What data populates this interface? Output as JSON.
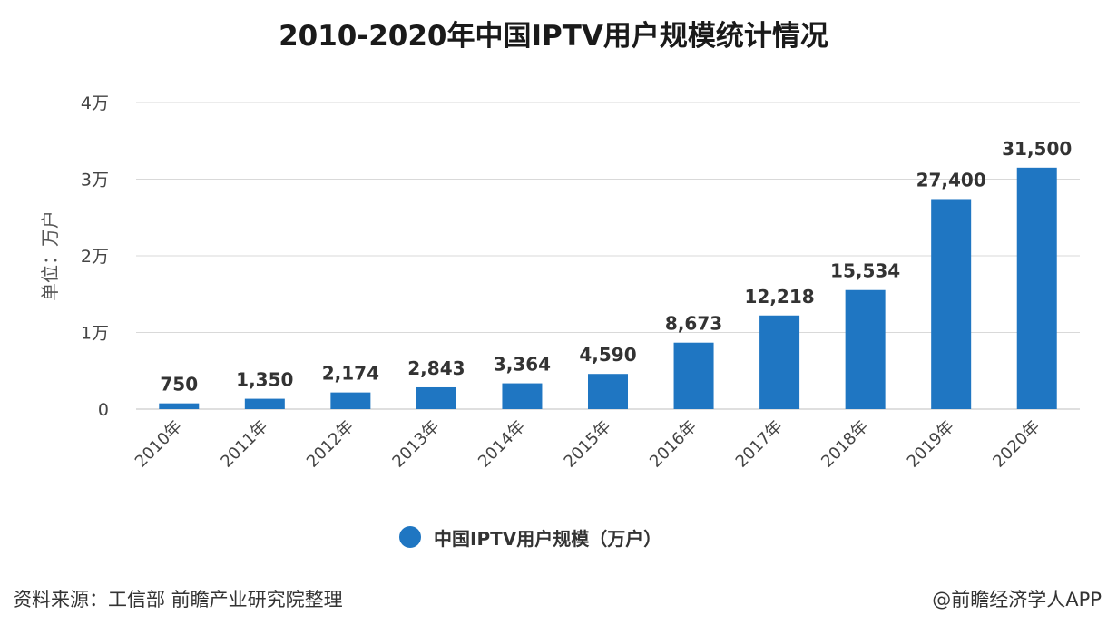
{
  "chart_data": {
    "type": "bar",
    "title": "2010-2020年中国IPTV用户规模统计情况",
    "ylabel": "单位：万户",
    "xlabel": "",
    "categories": [
      "2010年",
      "2011年",
      "2012年",
      "2013年",
      "2014年",
      "2015年",
      "2016年",
      "2017年",
      "2018年",
      "2019年",
      "2020年"
    ],
    "series": [
      {
        "name": "中国IPTV用户规模（万户）",
        "values": [
          750,
          1350,
          2174,
          2843,
          3364,
          4590,
          8673,
          12218,
          15534,
          27400,
          31500
        ],
        "labels": [
          "750",
          "1,350",
          "2,174",
          "2,843",
          "3,364",
          "4,590",
          "8,673",
          "12,218",
          "15,534",
          "27,400",
          "31,500"
        ]
      }
    ],
    "ylim": [
      0,
      40000
    ],
    "yticks": [
      0,
      10000,
      20000,
      30000,
      40000
    ],
    "ytick_labels": [
      "0",
      "1万",
      "2万",
      "3万",
      "4万"
    ],
    "grid": true,
    "legend_position": "bottom-center"
  },
  "colors": {
    "bar": "#1f76c2",
    "grid": "#d9d9d9",
    "axis": "#bfbfbf"
  },
  "footer": {
    "source": "资料来源：工信部 前瞻产业研究院整理",
    "brand": "@前瞻经济学人APP"
  }
}
